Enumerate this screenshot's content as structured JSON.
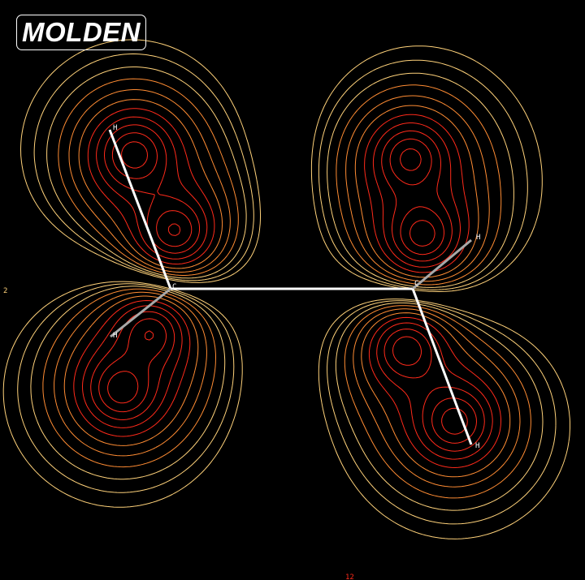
{
  "app": {
    "logo_text": "MOLDEN"
  },
  "plot": {
    "edge_labels": {
      "left": "2",
      "bottom": "12"
    },
    "colors": {
      "background": "#000000",
      "contour_red": "#ff2a1a",
      "contour_orange": "#ff8c33",
      "contour_yellow": "#ffd27a",
      "bond_white": "#ffffff",
      "bond_grey": "#a8a8a8",
      "atom_label": "#ffffff"
    }
  },
  "molecule": {
    "atoms": [
      {
        "id": "C1",
        "label": "C"
      },
      {
        "id": "C2",
        "label": "C"
      },
      {
        "id": "H1",
        "label": "H"
      },
      {
        "id": "H2",
        "label": "H"
      },
      {
        "id": "H3",
        "label": "H"
      },
      {
        "id": "H4",
        "label": "H"
      }
    ]
  }
}
